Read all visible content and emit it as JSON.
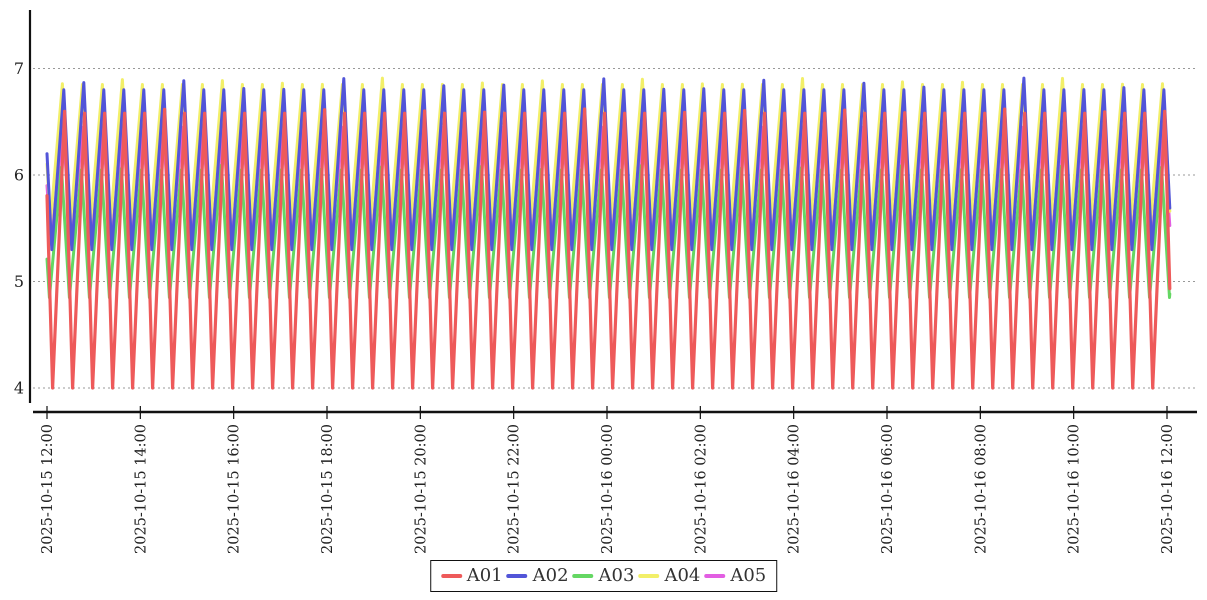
{
  "chart_data": {
    "type": "line",
    "title": "",
    "x_axis": {
      "label": "",
      "tick_labels": [
        "2025-10-15 12:00",
        "2025-10-15 14:00",
        "2025-10-15 16:00",
        "2025-10-15 18:00",
        "2025-10-15 20:00",
        "2025-10-15 22:00",
        "2025-10-16 00:00",
        "2025-10-16 02:00",
        "2025-10-16 04:00",
        "2025-10-16 06:00",
        "2025-10-16 08:00",
        "2025-10-16 10:00",
        "2025-10-16 12:00"
      ],
      "tick_interval_hours": 2,
      "span_hours": 24.06,
      "label_rotation_deg": -90
    },
    "y_axis": {
      "label": "",
      "min": 4,
      "max": 7,
      "ticks": [
        4,
        5,
        6,
        7
      ],
      "gridlines": "dotted",
      "gridline_color": "#999999"
    },
    "waveform": {
      "shape": "asymmetric-triangle",
      "period_hours": 0.4286,
      "rise_fraction": 0.6,
      "cycles": 56
    },
    "series": [
      {
        "name": "A01",
        "color": "#ee5a5a",
        "min": 4.0,
        "max": 6.58,
        "peak_frac": 0.88,
        "peak_jitter": 0.04,
        "jitter_seed": 2.0,
        "draw_order": 5,
        "width": 3.2
      },
      {
        "name": "A02",
        "color": "#5255d8",
        "min": 5.3,
        "max": 6.8,
        "peak_frac": 0.84,
        "peak_jitter": 0.11,
        "jitter_seed": -0.5,
        "draw_order": 4,
        "width": 3.0
      },
      {
        "name": "A03",
        "color": "#64d763",
        "min": 4.85,
        "max": 6.05,
        "peak_frac": 0.72,
        "peak_jitter": 0.04,
        "jitter_seed": 1.2,
        "draw_order": 3,
        "width": 3.0
      },
      {
        "name": "A04",
        "color": "#f2ef68",
        "min": 5.55,
        "max": 6.85,
        "peak_frac": 0.77,
        "peak_jitter": 0.06,
        "jitter_seed": 0.9,
        "draw_order": 2,
        "width": 3.0
      },
      {
        "name": "A05",
        "color": "#e25ee2",
        "min": 5.35,
        "max": 6.45,
        "peak_frac": 0.8,
        "peak_jitter": 0.0,
        "jitter_seed": 0.0,
        "draw_order": 1,
        "width": 3.0
      }
    ],
    "legend": {
      "position": "bottom-center"
    },
    "colors": {
      "axis": "#111111",
      "tick_text": "#222222",
      "background": "#ffffff"
    }
  }
}
